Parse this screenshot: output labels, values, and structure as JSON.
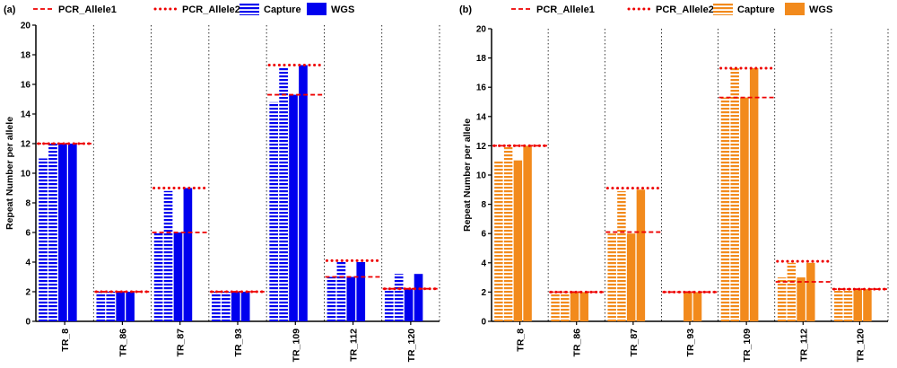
{
  "chart_data": [
    {
      "panel_label": "(a)",
      "type": "bar",
      "title": "",
      "xlabel": "",
      "ylabel": "Repeat Number per allele",
      "ylim": [
        0,
        20
      ],
      "yticks": [
        0,
        2,
        4,
        6,
        8,
        10,
        12,
        14,
        16,
        18,
        20
      ],
      "grid": "vertical dotted separators between categories",
      "legend_position": "top",
      "colors": {
        "bar": "#0000ee",
        "pcr": "#ee0000"
      },
      "legend": [
        {
          "name": "PCR_Allele1",
          "style": "dashed-line"
        },
        {
          "name": "PCR_Allele2",
          "style": "dotted-line"
        },
        {
          "name": "Capture",
          "style": "striped-bar"
        },
        {
          "name": "WGS",
          "style": "solid-bar"
        }
      ],
      "categories": [
        "TR_8",
        "TR_86",
        "TR_87",
        "TR_93",
        "TR_109",
        "TR_112",
        "TR_120"
      ],
      "series": [
        {
          "name": "Capture",
          "allele": 1,
          "values": [
            11,
            2,
            6,
            2,
            14.8,
            3,
            2.2
          ]
        },
        {
          "name": "Capture",
          "allele": 2,
          "values": [
            12,
            2,
            8.8,
            2,
            17.1,
            4,
            3.2
          ]
        },
        {
          "name": "WGS",
          "allele": 1,
          "values": [
            12,
            2,
            6,
            2,
            15.3,
            3,
            2.2
          ]
        },
        {
          "name": "WGS",
          "allele": 2,
          "values": [
            12,
            2,
            9,
            2,
            17.3,
            4,
            3.2
          ]
        },
        {
          "name": "PCR_Allele1",
          "values": [
            12,
            2,
            6,
            2,
            15.3,
            3,
            2.2
          ]
        },
        {
          "name": "PCR_Allele2",
          "values": [
            12,
            2,
            9,
            2,
            17.3,
            4.1,
            2.2
          ]
        }
      ]
    },
    {
      "panel_label": "(b)",
      "type": "bar",
      "title": "",
      "xlabel": "",
      "ylabel": "Repeat Number per allele",
      "ylim": [
        0,
        20
      ],
      "yticks": [
        0,
        2,
        4,
        6,
        8,
        10,
        12,
        14,
        16,
        18,
        20
      ],
      "grid": "vertical dotted separators between categories",
      "legend_position": "top",
      "colors": {
        "bar": "#f28a1c",
        "pcr": "#ee0000"
      },
      "legend": [
        {
          "name": "PCR_Allele1",
          "style": "dashed-line"
        },
        {
          "name": "PCR_Allele2",
          "style": "dotted-line"
        },
        {
          "name": "Capture",
          "style": "striped-bar"
        },
        {
          "name": "WGS",
          "style": "solid-bar"
        }
      ],
      "categories": [
        "TR_8",
        "TR_86",
        "TR_87",
        "TR_93",
        "TR_109",
        "TR_112",
        "TR_120"
      ],
      "series": [
        {
          "name": "Capture",
          "allele": 1,
          "values": [
            11,
            2,
            6,
            0,
            15.3,
            3,
            2.2
          ]
        },
        {
          "name": "Capture",
          "allele": 2,
          "values": [
            12,
            2,
            8.9,
            0,
            17.3,
            4,
            2.2
          ]
        },
        {
          "name": "WGS",
          "allele": 1,
          "values": [
            11,
            2,
            6,
            2,
            15.3,
            3,
            2.2
          ]
        },
        {
          "name": "WGS",
          "allele": 2,
          "values": [
            12,
            2,
            9,
            2,
            17.3,
            4,
            2.2
          ]
        },
        {
          "name": "PCR_Allele1",
          "values": [
            12,
            2,
            6.1,
            2,
            15.3,
            2.7,
            2.2
          ]
        },
        {
          "name": "PCR_Allele2",
          "values": [
            12,
            2,
            9.1,
            2,
            17.3,
            4.1,
            2.2
          ]
        }
      ]
    }
  ]
}
